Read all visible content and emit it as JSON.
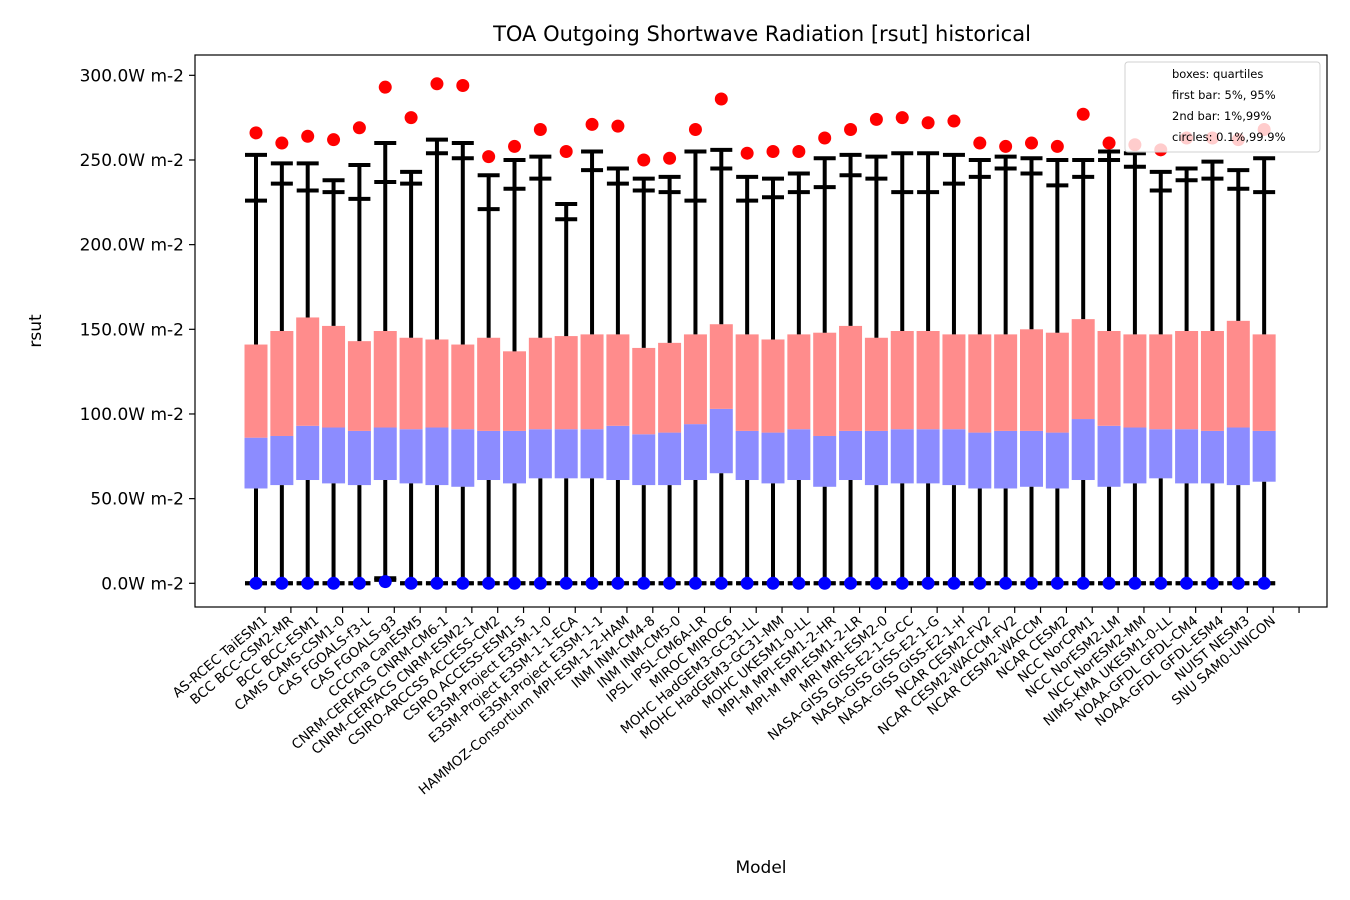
{
  "chart_data": {
    "type": "box",
    "title": "TOA Outgoing Shortwave Radiation [rsut] historical",
    "xlabel": "Model",
    "ylabel": "rsut",
    "ylim": [
      -14,
      312
    ],
    "yticks": [
      0,
      50,
      100,
      150,
      200,
      250,
      300
    ],
    "ytick_labels": [
      "0.0W m-2",
      "50.0W m-2",
      "100.0W m-2",
      "150.0W m-2",
      "200.0W m-2",
      "250.0W m-2",
      "300.0W m-2"
    ],
    "colors": {
      "upper_box": "#ff8c8c",
      "lower_box": "#8c8cff",
      "whisker": "#000000",
      "circle_high": "#ff0000",
      "circle_low": "#0000ff"
    },
    "legend": {
      "position": "top-right",
      "lines": [
        "boxes: quartiles",
        "first bar: 5%, 95%",
        "2nd bar: 1%,99%",
        "circles: 0.1%,99.9%"
      ]
    },
    "models": [
      {
        "name": "AS-RCEC TaiESM1",
        "p01": 0,
        "p1": 0,
        "p5": 0,
        "q1": 56,
        "median": 86,
        "q3": 141,
        "p95": 226,
        "p99": 253,
        "p999": 266
      },
      {
        "name": "BCC BCC-CSM2-MR",
        "p01": 0,
        "p1": 0,
        "p5": 0,
        "q1": 58,
        "median": 87,
        "q3": 149,
        "p95": 236,
        "p99": 248,
        "p999": 260
      },
      {
        "name": "BCC BCC-ESM1",
        "p01": 0,
        "p1": 0,
        "p5": 0,
        "q1": 61,
        "median": 93,
        "q3": 157,
        "p95": 232,
        "p99": 248,
        "p999": 264
      },
      {
        "name": "CAMS CAMS-CSM1-0",
        "p01": 0,
        "p1": 0,
        "p5": 0,
        "q1": 59,
        "median": 92,
        "q3": 152,
        "p95": 231,
        "p99": 238,
        "p999": 262
      },
      {
        "name": "CAS FGOALS-f3-L",
        "p01": 0,
        "p1": 0,
        "p5": 0,
        "q1": 58,
        "median": 90,
        "q3": 143,
        "p95": 227,
        "p99": 247,
        "p999": 269
      },
      {
        "name": "CAS FGOALS-g3",
        "p01": 1,
        "p1": 2,
        "p5": 3,
        "q1": 61,
        "median": 92,
        "q3": 149,
        "p95": 237,
        "p99": 260,
        "p999": 293
      },
      {
        "name": "CCCma CanESM5",
        "p01": 0,
        "p1": 0,
        "p5": 0,
        "q1": 59,
        "median": 91,
        "q3": 145,
        "p95": 236,
        "p99": 243,
        "p999": 275
      },
      {
        "name": "CNRM-CERFACS CNRM-CM6-1",
        "p01": 0,
        "p1": 0,
        "p5": 0,
        "q1": 58,
        "median": 92,
        "q3": 144,
        "p95": 254,
        "p99": 262,
        "p999": 295
      },
      {
        "name": "CNRM-CERFACS CNRM-ESM2-1",
        "p01": 0,
        "p1": 0,
        "p5": 0,
        "q1": 57,
        "median": 91,
        "q3": 141,
        "p95": 251,
        "p99": 260,
        "p999": 294
      },
      {
        "name": "CSIRO-ARCCSS ACCESS-CM2",
        "p01": 0,
        "p1": 0,
        "p5": 0,
        "q1": 61,
        "median": 90,
        "q3": 145,
        "p95": 221,
        "p99": 241,
        "p999": 252
      },
      {
        "name": "CSIRO ACCESS-ESM1-5",
        "p01": 0,
        "p1": 0,
        "p5": 0,
        "q1": 59,
        "median": 90,
        "q3": 137,
        "p95": 233,
        "p99": 250,
        "p999": 258
      },
      {
        "name": "E3SM-Project E3SM-1-0",
        "p01": 0,
        "p1": 0,
        "p5": 0,
        "q1": 62,
        "median": 91,
        "q3": 145,
        "p95": 239,
        "p99": 252,
        "p999": 268
      },
      {
        "name": "E3SM-Project E3SM-1-1-ECA",
        "p01": 0,
        "p1": 0,
        "p5": 0,
        "q1": 62,
        "median": 91,
        "q3": 146,
        "p95": 215,
        "p99": 224,
        "p999": 255
      },
      {
        "name": "E3SM-Project E3SM-1-1",
        "p01": 0,
        "p1": 0,
        "p5": 0,
        "q1": 62,
        "median": 91,
        "q3": 147,
        "p95": 244,
        "p99": 255,
        "p999": 271
      },
      {
        "name": "HAMMOZ-Consortium MPI-ESM-1-2-HAM",
        "p01": 0,
        "p1": 0,
        "p5": 0,
        "q1": 61,
        "median": 93,
        "q3": 147,
        "p95": 236,
        "p99": 245,
        "p999": 270
      },
      {
        "name": "INM INM-CM4-8",
        "p01": 0,
        "p1": 0,
        "p5": 0,
        "q1": 58,
        "median": 88,
        "q3": 139,
        "p95": 232,
        "p99": 239,
        "p999": 250
      },
      {
        "name": "INM INM-CM5-0",
        "p01": 0,
        "p1": 0,
        "p5": 0,
        "q1": 58,
        "median": 89,
        "q3": 142,
        "p95": 231,
        "p99": 240,
        "p999": 251
      },
      {
        "name": "IPSL IPSL-CM6A-LR",
        "p01": 0,
        "p1": 0,
        "p5": 0,
        "q1": 61,
        "median": 94,
        "q3": 147,
        "p95": 226,
        "p99": 255,
        "p999": 268
      },
      {
        "name": "MIROC MIROC6",
        "p01": 0,
        "p1": 0,
        "p5": 0,
        "q1": 65,
        "median": 103,
        "q3": 153,
        "p95": 245,
        "p99": 256,
        "p999": 286
      },
      {
        "name": "MOHC HadGEM3-GC31-LL",
        "p01": 0,
        "p1": 0,
        "p5": 0,
        "q1": 61,
        "median": 90,
        "q3": 147,
        "p95": 226,
        "p99": 240,
        "p999": 254
      },
      {
        "name": "MOHC HadGEM3-GC31-MM",
        "p01": 0,
        "p1": 0,
        "p5": 0,
        "q1": 59,
        "median": 89,
        "q3": 144,
        "p95": 228,
        "p99": 239,
        "p999": 255
      },
      {
        "name": "MOHC UKESM1-0-LL",
        "p01": 0,
        "p1": 0,
        "p5": 0,
        "q1": 61,
        "median": 91,
        "q3": 147,
        "p95": 231,
        "p99": 242,
        "p999": 255
      },
      {
        "name": "MPI-M MPI-ESM1-2-HR",
        "p01": 0,
        "p1": 0,
        "p5": 0,
        "q1": 57,
        "median": 87,
        "q3": 148,
        "p95": 234,
        "p99": 251,
        "p999": 263
      },
      {
        "name": "MPI-M MPI-ESM1-2-LR",
        "p01": 0,
        "p1": 0,
        "p5": 0,
        "q1": 61,
        "median": 90,
        "q3": 152,
        "p95": 241,
        "p99": 253,
        "p999": 268
      },
      {
        "name": "MRI MRI-ESM2-0",
        "p01": 0,
        "p1": 0,
        "p5": 0,
        "q1": 58,
        "median": 90,
        "q3": 145,
        "p95": 239,
        "p99": 252,
        "p999": 274
      },
      {
        "name": "NASA-GISS GISS-E2-1-G-CC",
        "p01": 0,
        "p1": 0,
        "p5": 0,
        "q1": 59,
        "median": 91,
        "q3": 149,
        "p95": 231,
        "p99": 254,
        "p999": 275
      },
      {
        "name": "NASA-GISS GISS-E2-1-G",
        "p01": 0,
        "p1": 0,
        "p5": 0,
        "q1": 59,
        "median": 91,
        "q3": 149,
        "p95": 231,
        "p99": 254,
        "p999": 272
      },
      {
        "name": "NASA-GISS GISS-E2-1-H",
        "p01": 0,
        "p1": 0,
        "p5": 0,
        "q1": 58,
        "median": 91,
        "q3": 147,
        "p95": 236,
        "p99": 253,
        "p999": 273
      },
      {
        "name": "NCAR CESM2-FV2",
        "p01": 0,
        "p1": 0,
        "p5": 0,
        "q1": 56,
        "median": 89,
        "q3": 147,
        "p95": 240,
        "p99": 250,
        "p999": 260
      },
      {
        "name": "NCAR CESM2-WACCM-FV2",
        "p01": 0,
        "p1": 0,
        "p5": 0,
        "q1": 56,
        "median": 90,
        "q3": 147,
        "p95": 245,
        "p99": 252,
        "p999": 258
      },
      {
        "name": "NCAR CESM2-WACCM",
        "p01": 0,
        "p1": 0,
        "p5": 0,
        "q1": 57,
        "median": 90,
        "q3": 150,
        "p95": 242,
        "p99": 251,
        "p999": 260
      },
      {
        "name": "NCAR CESM2",
        "p01": 0,
        "p1": 0,
        "p5": 0,
        "q1": 56,
        "median": 89,
        "q3": 148,
        "p95": 235,
        "p99": 250,
        "p999": 258
      },
      {
        "name": "NCC NorCPM1",
        "p01": 0,
        "p1": 0,
        "p5": 0,
        "q1": 61,
        "median": 97,
        "q3": 156,
        "p95": 240,
        "p99": 250,
        "p999": 277
      },
      {
        "name": "NCC NorESM2-LM",
        "p01": 0,
        "p1": 0,
        "p5": 0,
        "q1": 57,
        "median": 93,
        "q3": 149,
        "p95": 250,
        "p99": 255,
        "p999": 260
      },
      {
        "name": "NCC NorESM2-MM",
        "p01": 0,
        "p1": 0,
        "p5": 0,
        "q1": 59,
        "median": 92,
        "q3": 147,
        "p95": 246,
        "p99": 254,
        "p999": 259
      },
      {
        "name": "NIMS-KMA UKESM1-0-LL",
        "p01": 0,
        "p1": 0,
        "p5": 0,
        "q1": 62,
        "median": 91,
        "q3": 147,
        "p95": 232,
        "p99": 243,
        "p999": 256
      },
      {
        "name": "NOAA-GFDL GFDL-CM4",
        "p01": 0,
        "p1": 0,
        "p5": 0,
        "q1": 59,
        "median": 91,
        "q3": 149,
        "p95": 238,
        "p99": 245,
        "p999": 263
      },
      {
        "name": "NOAA-GFDL GFDL-ESM4",
        "p01": 0,
        "p1": 0,
        "p5": 0,
        "q1": 59,
        "median": 90,
        "q3": 149,
        "p95": 239,
        "p99": 249,
        "p999": 263
      },
      {
        "name": "NUIST NESM3",
        "p01": 0,
        "p1": 0,
        "p5": 0,
        "q1": 58,
        "median": 92,
        "q3": 155,
        "p95": 233,
        "p99": 244,
        "p999": 262
      },
      {
        "name": "SNU SAM0-UNICON",
        "p01": 0,
        "p1": 0,
        "p5": 0,
        "q1": 60,
        "median": 90,
        "q3": 147,
        "p95": 231,
        "p99": 251,
        "p999": 268
      }
    ]
  }
}
